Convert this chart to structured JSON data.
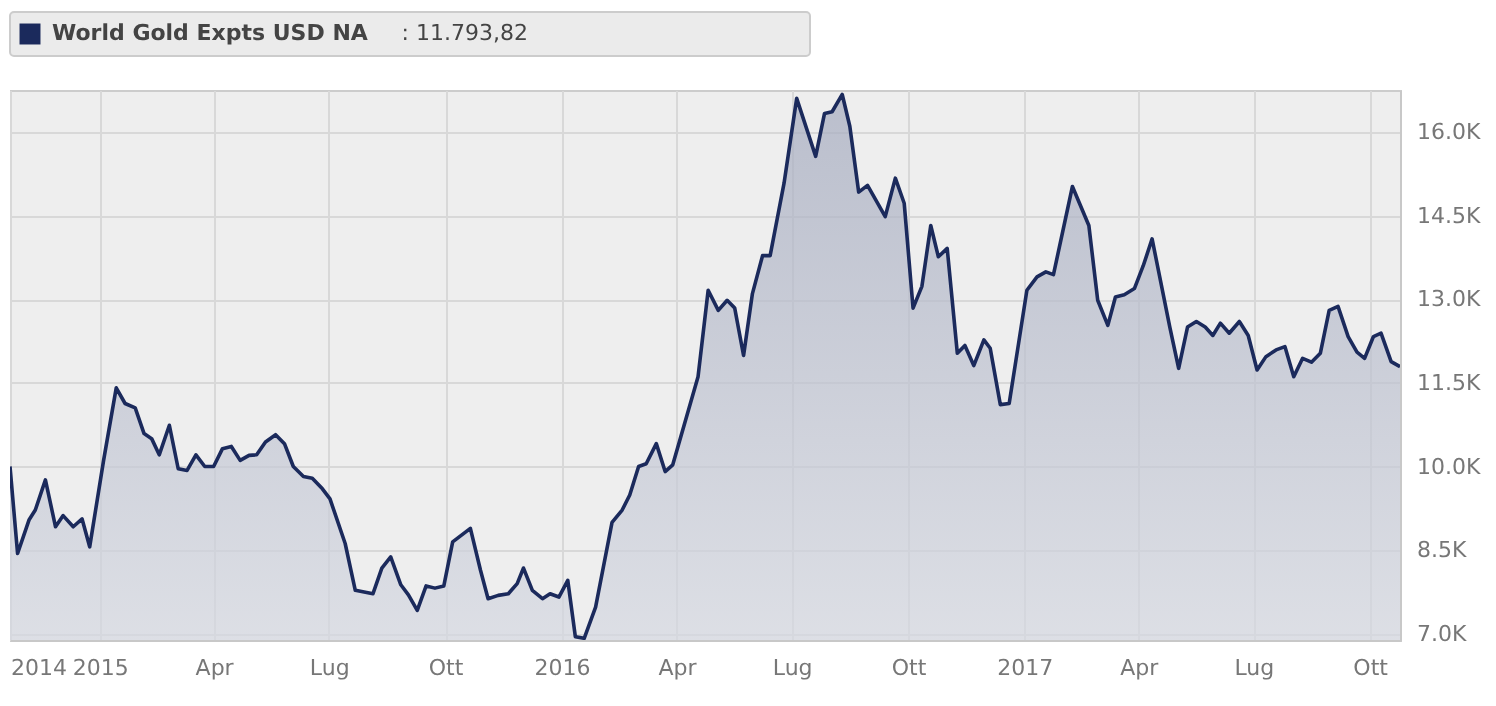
{
  "chart_data": {
    "type": "area",
    "x": [
      "2014-10-22",
      "2014-10-28",
      "2014-11-06",
      "2014-11-11",
      "2014-11-19",
      "2014-11-27",
      "2014-12-03",
      "2014-12-11",
      "2014-12-18",
      "2014-12-24",
      "2015-01-04",
      "2015-01-14",
      "2015-01-21",
      "2015-01-29",
      "2015-02-05",
      "2015-02-11",
      "2015-02-17",
      "2015-02-25",
      "2015-03-04",
      "2015-03-11",
      "2015-03-18",
      "2015-03-25",
      "2015-04-01",
      "2015-04-08",
      "2015-04-15",
      "2015-04-22",
      "2015-04-29",
      "2015-05-05",
      "2015-05-12",
      "2015-05-20",
      "2015-05-27",
      "2015-06-03",
      "2015-06-11",
      "2015-06-18",
      "2015-06-26",
      "2015-07-02",
      "2015-07-14",
      "2015-07-22",
      "2015-08-05",
      "2015-08-12",
      "2015-08-19",
      "2015-08-27",
      "2015-09-02",
      "2015-09-09",
      "2015-09-16",
      "2015-09-23",
      "2015-09-30",
      "2015-10-07",
      "2015-10-21",
      "2015-10-29",
      "2015-11-04",
      "2015-11-12",
      "2015-11-20",
      "2015-11-27",
      "2015-12-02",
      "2015-12-09",
      "2015-12-17",
      "2015-12-23",
      "2015-12-30",
      "2016-01-06",
      "2016-01-12",
      "2016-01-19",
      "2016-01-28",
      "2016-02-10",
      "2016-02-18",
      "2016-02-24",
      "2016-03-02",
      "2016-03-08",
      "2016-03-16",
      "2016-03-23",
      "2016-03-29",
      "2016-04-18",
      "2016-04-26",
      "2016-05-04",
      "2016-05-11",
      "2016-05-17",
      "2016-05-24",
      "2016-05-31",
      "2016-06-08",
      "2016-06-14",
      "2016-06-25",
      "2016-07-05",
      "2016-07-20",
      "2016-07-27",
      "2016-08-02",
      "2016-08-10",
      "2016-08-16",
      "2016-08-23",
      "2016-08-30",
      "2016-09-13",
      "2016-09-21",
      "2016-09-28",
      "2016-10-05",
      "2016-10-12",
      "2016-10-19",
      "2016-10-25",
      "2016-11-01",
      "2016-11-09",
      "2016-11-15",
      "2016-11-22",
      "2016-11-30",
      "2016-12-05",
      "2016-12-13",
      "2016-12-20",
      "2017-01-03",
      "2017-01-11",
      "2017-01-18",
      "2017-01-24",
      "2017-02-08",
      "2017-02-21",
      "2017-02-28",
      "2017-03-08",
      "2017-03-14",
      "2017-03-21",
      "2017-03-29",
      "2017-04-05",
      "2017-04-12",
      "2017-04-26",
      "2017-05-03",
      "2017-05-10",
      "2017-05-17",
      "2017-05-24",
      "2017-05-30",
      "2017-06-05",
      "2017-06-12",
      "2017-06-20",
      "2017-06-27",
      "2017-07-04",
      "2017-07-11",
      "2017-07-19",
      "2017-07-26",
      "2017-08-02",
      "2017-08-09",
      "2017-08-16",
      "2017-08-23",
      "2017-08-30",
      "2017-09-06",
      "2017-09-14",
      "2017-09-21",
      "2017-09-27",
      "2017-10-04",
      "2017-10-10",
      "2017-10-18",
      "2017-10-25"
    ],
    "series": [
      {
        "name": "World Gold Expts USD NA",
        "color": "#1b2a5c",
        "values": [
          10000,
          8440,
          9040,
          9220,
          9760,
          8920,
          9120,
          8920,
          9060,
          8560,
          10110,
          11410,
          11130,
          11050,
          10590,
          10500,
          10210,
          10740,
          9960,
          9930,
          10210,
          10000,
          10000,
          10320,
          10360,
          10110,
          10200,
          10210,
          10440,
          10570,
          10410,
          10000,
          9820,
          9790,
          9600,
          9420,
          8620,
          7780,
          7720,
          8180,
          8380,
          7880,
          7700,
          7420,
          7860,
          7820,
          7860,
          8650,
          8890,
          8140,
          7630,
          7690,
          7720,
          7900,
          8180,
          7780,
          7630,
          7720,
          7660,
          7960,
          6950,
          6920,
          7480,
          9000,
          9220,
          9490,
          10000,
          10050,
          10410,
          9910,
          10030,
          11610,
          13160,
          12800,
          12980,
          12840,
          11990,
          13100,
          13780,
          13780,
          15080,
          16600,
          15560,
          16330,
          16360,
          16670,
          16100,
          14920,
          15040,
          14480,
          15170,
          14720,
          12840,
          13230,
          14320,
          13760,
          13910,
          12030,
          12170,
          11810,
          12270,
          12120,
          11110,
          11130,
          13160,
          13400,
          13490,
          13440,
          15020,
          14320,
          12980,
          12530,
          13040,
          13080,
          13190,
          13600,
          14080,
          12500,
          11760,
          12500,
          12600,
          12500,
          12350,
          12570,
          12390,
          12600,
          12350,
          11730,
          11970,
          12090,
          12150,
          11610,
          11940,
          11870,
          12030,
          12800,
          12870,
          12330,
          12050,
          11940,
          12330,
          12390,
          11880,
          11790
        ]
      }
    ],
    "annotations": [
      ": 11.793,82"
    ],
    "xlim": [
      "2014-10-22",
      "2017-10-25"
    ],
    "xticks": [
      {
        "value": "2014-10-22",
        "label": "2014"
      },
      {
        "value": "2015-01-01",
        "label": "2015"
      },
      {
        "value": "2015-04-01",
        "label": "Apr"
      },
      {
        "value": "2015-07-01",
        "label": "Lug"
      },
      {
        "value": "2015-10-01",
        "label": "Ott"
      },
      {
        "value": "2016-01-01",
        "label": "2016"
      },
      {
        "value": "2016-04-01",
        "label": "Apr"
      },
      {
        "value": "2016-07-01",
        "label": "Lug"
      },
      {
        "value": "2016-10-01",
        "label": "Ott"
      },
      {
        "value": "2017-01-01",
        "label": "2017"
      },
      {
        "value": "2017-04-01",
        "label": "Apr"
      },
      {
        "value": "2017-07-01",
        "label": "Lug"
      },
      {
        "value": "2017-10-01",
        "label": "Ott"
      }
    ],
    "ylim": [
      6890,
      16750
    ],
    "yticks": [
      {
        "value": 7000,
        "label": "7.0K"
      },
      {
        "value": 8500,
        "label": "8.5K"
      },
      {
        "value": 10000,
        "label": "10.0K"
      },
      {
        "value": 11500,
        "label": "11.5K"
      },
      {
        "value": 13000,
        "label": "13.0K"
      },
      {
        "value": 14500,
        "label": "14.5K"
      },
      {
        "value": 16000,
        "label": "16.0K"
      }
    ],
    "grid": true,
    "legend": "top left"
  }
}
